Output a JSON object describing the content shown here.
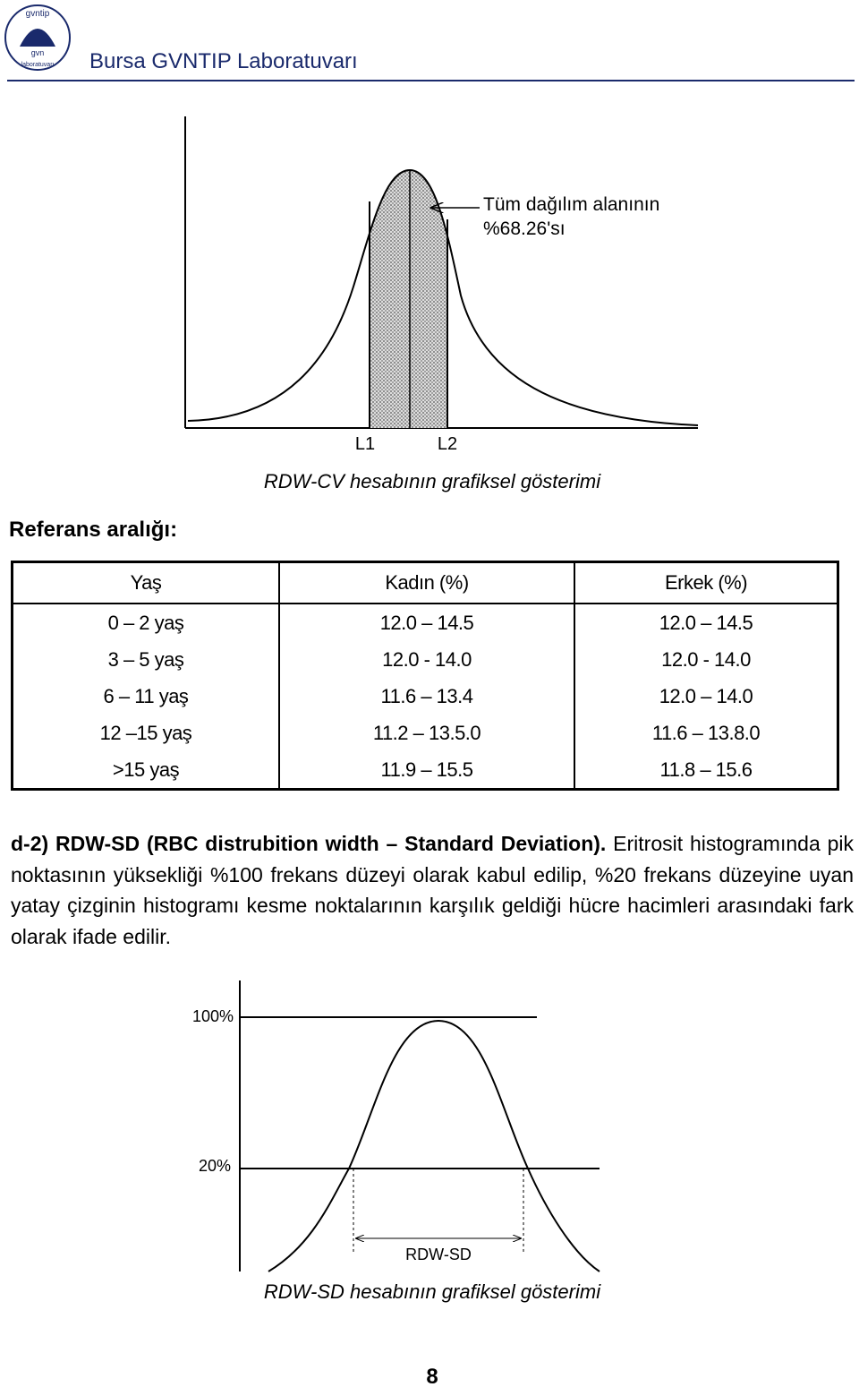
{
  "header": {
    "title": "Bursa GVNTIP Laboratuvarı",
    "logo": {
      "top": "gvntip",
      "middle": "gvn",
      "bottom": "laboratuvarı"
    }
  },
  "figure1": {
    "annotation": [
      "Tüm dağılım alanının",
      "%68.26'sı"
    ],
    "labels": [
      "L1",
      "L2"
    ],
    "caption": "RDW-CV hesabının grafiksel gösterimi"
  },
  "section_title": "Referans aralığı:",
  "table": {
    "header": [
      "Yaş",
      "Kadın (%)",
      "Erkek (%)"
    ],
    "rows": [
      [
        "0 – 2 yaş",
        "12.0 – 14.5",
        "12.0 – 14.5"
      ],
      [
        "3 – 5 yaş",
        "12.0 - 14.0",
        "12.0 - 14.0"
      ],
      [
        "6 – 11 yaş",
        "11.6 – 13.4",
        "12.0 – 14.0"
      ],
      [
        "12 –15 yaş",
        "11.2 – 13.5.0",
        "11.6 – 13.8.0"
      ],
      [
        ">15 yaş",
        "11.9 – 15.5",
        "11.8 – 15.6"
      ]
    ]
  },
  "paragraph": {
    "heading": "d-2) RDW-SD (RBC distrubition width – Standard Deviation).",
    "text": "Eritrosit histogramında pik noktasının yüksekliği %100 frekans düzeyi olarak kabul edilip, %20 frekans düzeyine uyan yatay çizginin histogramı kesme noktalarının karşılık geldiği hücre hacimleri arasındaki fark olarak ifade edilir."
  },
  "figure2": {
    "labels": [
      "100%",
      "20%"
    ],
    "measure": "RDW-SD",
    "caption": "RDW-SD hesabının grafiksel gösterimi"
  },
  "page_number": "8"
}
